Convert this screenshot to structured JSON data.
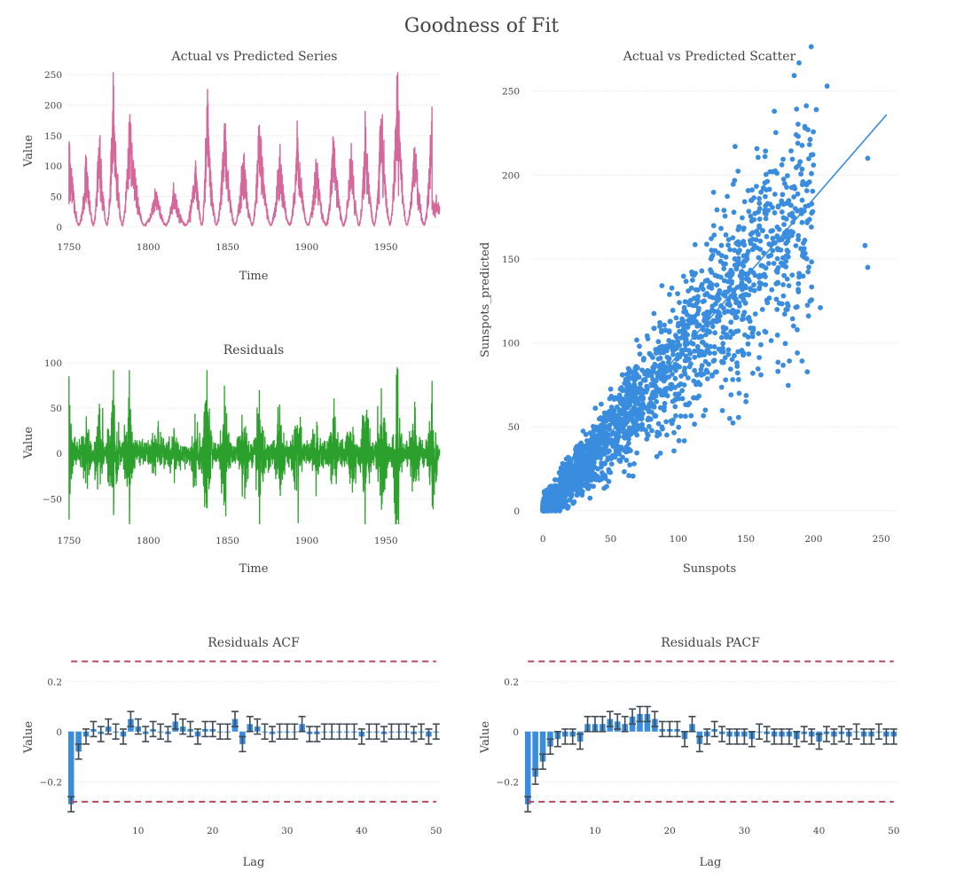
{
  "title": "Goodness of Fit",
  "colors": {
    "series": "#d5679a",
    "residuals": "#2ca02c",
    "scatter": "#3a8dde",
    "bars": "#3a8dde",
    "errorbars": "#3f4a52",
    "confidence": "#b5475a"
  },
  "chart_data": [
    {
      "id": "series",
      "type": "line",
      "title": "Actual vs Predicted Series",
      "xlabel": "Time",
      "ylabel": "Value",
      "xlim": [
        1749,
        1984
      ],
      "ylim": [
        -6,
        256
      ],
      "xticks": [
        1750,
        1800,
        1850,
        1900,
        1950
      ],
      "yticks": [
        0,
        50,
        100,
        150,
        200,
        250
      ],
      "cycle_peaks": [
        [
          1750,
          160
        ],
        [
          1761,
          108
        ],
        [
          1769,
          160
        ],
        [
          1778,
          240
        ],
        [
          1788,
          178
        ],
        [
          1805,
          62
        ],
        [
          1816,
          60
        ],
        [
          1830,
          108
        ],
        [
          1837,
          206
        ],
        [
          1848,
          172
        ],
        [
          1860,
          128
        ],
        [
          1870,
          180
        ],
        [
          1883,
          124
        ],
        [
          1894,
          148
        ],
        [
          1906,
          108
        ],
        [
          1917,
          158
        ],
        [
          1928,
          128
        ],
        [
          1937,
          168
        ],
        [
          1947,
          202
        ],
        [
          1957,
          254
        ],
        [
          1968,
          140
        ],
        [
          1979,
          190
        ]
      ]
    },
    {
      "id": "residuals",
      "type": "line",
      "title": "Residuals",
      "xlabel": "Time",
      "ylabel": "Value",
      "xlim": [
        1749,
        1984
      ],
      "ylim": [
        -78,
        100
      ],
      "xticks": [
        1750,
        1800,
        1850,
        1900,
        1950
      ],
      "yticks": [
        -50,
        0,
        50,
        100
      ],
      "extremes": [
        [
          1750,
          85,
          -73
        ],
        [
          1778,
          92,
          -68
        ],
        [
          1788,
          92,
          -60
        ],
        [
          1837,
          92,
          -60
        ],
        [
          1848,
          75,
          -53
        ],
        [
          1870,
          70,
          -55
        ],
        [
          1947,
          72,
          -62
        ],
        [
          1957,
          95,
          -73
        ],
        [
          1979,
          80,
          -58
        ]
      ]
    },
    {
      "id": "scatter",
      "type": "scatter",
      "title": "Actual vs Predicted Scatter",
      "xlabel": "Sunspots",
      "ylabel": "Sunspots_predicted",
      "xlim": [
        -8,
        262
      ],
      "ylim": [
        -8,
        262
      ],
      "xticks": [
        0,
        50,
        100,
        150,
        200,
        250
      ],
      "yticks": [
        0,
        50,
        100,
        150,
        200,
        250
      ],
      "fit_line": [
        [
          0,
          0
        ],
        [
          254,
          236
        ]
      ],
      "outliers": [
        [
          210,
          253
        ],
        [
          202,
          239
        ],
        [
          171,
          238
        ],
        [
          240,
          210
        ],
        [
          238,
          158
        ],
        [
          240,
          145
        ],
        [
          205,
          121
        ],
        [
          188,
          94
        ],
        [
          142,
          217
        ],
        [
          135,
          78
        ],
        [
          145,
          70
        ],
        [
          150,
          65
        ],
        [
          138,
          55
        ],
        [
          120,
          60
        ]
      ]
    },
    {
      "id": "acf",
      "type": "bar",
      "title": "Residuals ACF",
      "xlabel": "Lag",
      "ylabel": "Value",
      "xlim": [
        0.5,
        50.5
      ],
      "ylim": [
        -0.33,
        0.3
      ],
      "xticks": [
        10,
        20,
        30,
        40,
        50
      ],
      "yticks": [
        -0.2,
        0,
        0.2
      ],
      "conf_band": 0.28,
      "lags": [
        1,
        2,
        3,
        4,
        5,
        6,
        7,
        8,
        9,
        10,
        11,
        12,
        13,
        14,
        15,
        16,
        17,
        18,
        19,
        20,
        21,
        22,
        23,
        24,
        25,
        26,
        27,
        28,
        29,
        30,
        31,
        32,
        33,
        34,
        35,
        36,
        37,
        38,
        39,
        40,
        41,
        42,
        43,
        44,
        45,
        46,
        47,
        48,
        49,
        50
      ],
      "values": [
        -0.29,
        -0.08,
        -0.02,
        0.01,
        -0.01,
        0.02,
        0.0,
        -0.02,
        0.05,
        0.02,
        -0.01,
        0.01,
        0.0,
        -0.01,
        0.04,
        0.02,
        0.01,
        -0.02,
        0.01,
        0.01,
        0.0,
        0.0,
        0.05,
        -0.05,
        0.03,
        0.02,
        0.0,
        -0.01,
        0.0,
        0.0,
        0.0,
        0.03,
        -0.01,
        -0.01,
        0.0,
        0.0,
        0.0,
        0.0,
        0.0,
        -0.02,
        0.0,
        0.0,
        -0.01,
        0.0,
        0.0,
        0.0,
        -0.01,
        0.0,
        -0.02,
        0.0
      ],
      "error": 0.03
    },
    {
      "id": "pacf",
      "type": "bar",
      "title": "Residuals PACF",
      "xlabel": "Lag",
      "ylabel": "Value",
      "xlim": [
        0.5,
        50.5
      ],
      "ylim": [
        -0.33,
        0.3
      ],
      "xticks": [
        10,
        20,
        30,
        40,
        50
      ],
      "yticks": [
        -0.2,
        0,
        0.2
      ],
      "conf_band": 0.28,
      "lags": [
        1,
        2,
        3,
        4,
        5,
        6,
        7,
        8,
        9,
        10,
        11,
        12,
        13,
        14,
        15,
        16,
        17,
        18,
        19,
        20,
        21,
        22,
        23,
        24,
        25,
        26,
        27,
        28,
        29,
        30,
        31,
        32,
        33,
        34,
        35,
        36,
        37,
        38,
        39,
        40,
        41,
        42,
        43,
        44,
        45,
        46,
        47,
        48,
        49,
        50
      ],
      "values": [
        -0.29,
        -0.18,
        -0.12,
        -0.06,
        -0.03,
        -0.02,
        -0.02,
        -0.04,
        0.03,
        0.03,
        0.03,
        0.05,
        0.04,
        0.03,
        0.06,
        0.07,
        0.07,
        0.05,
        0.01,
        0.01,
        0.01,
        -0.03,
        0.03,
        -0.05,
        -0.02,
        0.01,
        -0.01,
        -0.02,
        -0.02,
        -0.02,
        -0.03,
        0.0,
        -0.01,
        -0.02,
        -0.02,
        -0.02,
        -0.03,
        -0.01,
        -0.02,
        -0.04,
        -0.01,
        -0.02,
        -0.01,
        -0.02,
        0.0,
        -0.02,
        -0.02,
        0.0,
        -0.02,
        -0.02
      ],
      "error": 0.03
    }
  ]
}
